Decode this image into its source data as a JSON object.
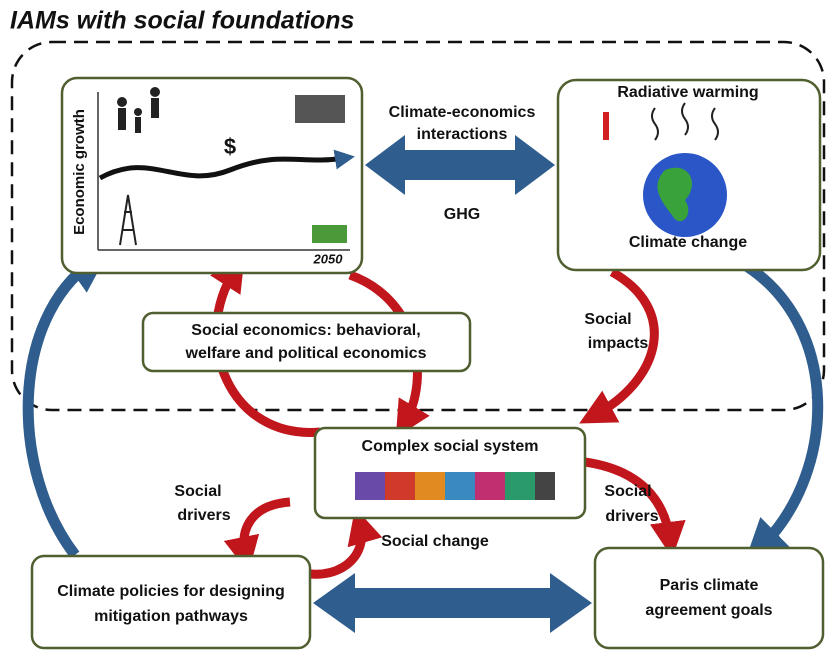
{
  "title": "IAMs with social foundations",
  "economic_box": {
    "axis_label": "Economic growth",
    "symbol": "$",
    "year": "2050"
  },
  "climate_box": {
    "top": "Radiative warming",
    "bottom": "Climate change"
  },
  "links": {
    "climate_economics": [
      "Climate-economics",
      "interactions"
    ],
    "ghg": "GHG",
    "social_impacts": [
      "Social",
      "impacts"
    ],
    "social_drivers_left": [
      "Social",
      "drivers"
    ],
    "social_drivers_right": [
      "Social",
      "drivers"
    ],
    "social_change": "Social change"
  },
  "social_economics": [
    "Social economics: behavioral,",
    "welfare and political economics"
  ],
  "complex_social_system": "Complex social system",
  "climate_policies": [
    "Climate policies for designing",
    "mitigation pathways"
  ],
  "paris_goals": [
    "Paris climate",
    "agreement goals"
  ]
}
